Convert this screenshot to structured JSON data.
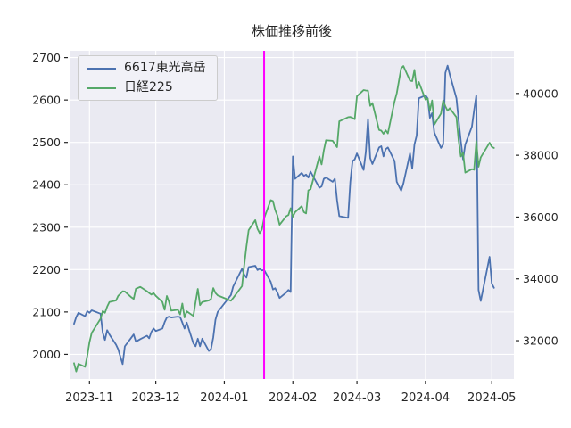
{
  "chart_data": {
    "type": "line",
    "title": "株価推移前後",
    "legend": {
      "position": "upper-left",
      "entries": [
        "6617東光高岳",
        "日経225"
      ]
    },
    "plot_bg_color": "#eaeaf2",
    "grid_color": "#ffffff",
    "text_color": "#262626",
    "event_line": {
      "date": "2024-01-19",
      "color": "#ff00ff",
      "width": 2
    },
    "x_axis": {
      "range": [
        "2023-10-23",
        "2024-05-11"
      ],
      "ticks": [
        {
          "label": "2023-11",
          "date": "2023-11-01"
        },
        {
          "label": "2023-12",
          "date": "2023-12-01"
        },
        {
          "label": "2024-01",
          "date": "2024-01-01"
        },
        {
          "label": "2024-02",
          "date": "2024-02-01"
        },
        {
          "label": "2024-03",
          "date": "2024-03-01"
        },
        {
          "label": "2024-04",
          "date": "2024-04-01"
        },
        {
          "label": "2024-05",
          "date": "2024-05-01"
        }
      ]
    },
    "y_left": {
      "range": [
        1942,
        2716
      ],
      "ticks": [
        2000,
        2100,
        2200,
        2300,
        2400,
        2500,
        2600,
        2700
      ]
    },
    "y_right": {
      "range": [
        30760,
        41380
      ],
      "ticks": [
        32000,
        34000,
        36000,
        38000,
        40000
      ]
    },
    "series": [
      {
        "name": "6617東光高岳",
        "axis": "left",
        "color": "#4c72b0",
        "points": [
          [
            "2023-10-25",
            2072
          ],
          [
            "2023-10-26",
            2088
          ],
          [
            "2023-10-27",
            2098
          ],
          [
            "2023-10-30",
            2090
          ],
          [
            "2023-10-31",
            2102
          ],
          [
            "2023-11-01",
            2098
          ],
          [
            "2023-11-02",
            2104
          ],
          [
            "2023-11-06",
            2096
          ],
          [
            "2023-11-07",
            2051
          ],
          [
            "2023-11-08",
            2034
          ],
          [
            "2023-11-09",
            2057
          ],
          [
            "2023-11-10",
            2047
          ],
          [
            "2023-11-13",
            2023
          ],
          [
            "2023-11-14",
            2012
          ],
          [
            "2023-11-15",
            1994
          ],
          [
            "2023-11-16",
            1977
          ],
          [
            "2023-11-17",
            2019
          ],
          [
            "2023-11-20",
            2040
          ],
          [
            "2023-11-21",
            2047
          ],
          [
            "2023-11-22",
            2030
          ],
          [
            "2023-11-24",
            2036
          ],
          [
            "2023-11-27",
            2044
          ],
          [
            "2023-11-28",
            2038
          ],
          [
            "2023-11-29",
            2053
          ],
          [
            "2023-11-30",
            2061
          ],
          [
            "2023-12-01",
            2055
          ],
          [
            "2023-12-04",
            2061
          ],
          [
            "2023-12-05",
            2076
          ],
          [
            "2023-12-06",
            2087
          ],
          [
            "2023-12-07",
            2089
          ],
          [
            "2023-12-08",
            2087
          ],
          [
            "2023-12-11",
            2089
          ],
          [
            "2023-12-12",
            2088
          ],
          [
            "2023-12-13",
            2075
          ],
          [
            "2023-12-14",
            2061
          ],
          [
            "2023-12-15",
            2075
          ],
          [
            "2023-12-18",
            2026
          ],
          [
            "2023-12-19",
            2019
          ],
          [
            "2023-12-20",
            2037
          ],
          [
            "2023-12-21",
            2019
          ],
          [
            "2023-12-22",
            2037
          ],
          [
            "2023-12-25",
            2008
          ],
          [
            "2023-12-26",
            2013
          ],
          [
            "2023-12-27",
            2040
          ],
          [
            "2023-12-28",
            2082
          ],
          [
            "2023-12-29",
            2100
          ],
          [
            "2024-01-04",
            2140
          ],
          [
            "2024-01-05",
            2160
          ],
          [
            "2024-01-09",
            2202
          ],
          [
            "2024-01-10",
            2188
          ],
          [
            "2024-01-11",
            2181
          ],
          [
            "2024-01-12",
            2206
          ],
          [
            "2024-01-15",
            2209
          ],
          [
            "2024-01-16",
            2199
          ],
          [
            "2024-01-17",
            2202
          ],
          [
            "2024-01-18",
            2198
          ],
          [
            "2024-01-19",
            2199
          ],
          [
            "2024-01-22",
            2171
          ],
          [
            "2024-01-23",
            2153
          ],
          [
            "2024-01-24",
            2156
          ],
          [
            "2024-01-25",
            2146
          ],
          [
            "2024-01-26",
            2133
          ],
          [
            "2024-01-29",
            2146
          ],
          [
            "2024-01-30",
            2152
          ],
          [
            "2024-01-31",
            2147
          ],
          [
            "2024-02-01",
            2467
          ],
          [
            "2024-02-02",
            2414
          ],
          [
            "2024-02-05",
            2428
          ],
          [
            "2024-02-06",
            2421
          ],
          [
            "2024-02-07",
            2424
          ],
          [
            "2024-02-08",
            2417
          ],
          [
            "2024-02-09",
            2431
          ],
          [
            "2024-02-13",
            2393
          ],
          [
            "2024-02-14",
            2396
          ],
          [
            "2024-02-15",
            2414
          ],
          [
            "2024-02-16",
            2417
          ],
          [
            "2024-02-19",
            2407
          ],
          [
            "2024-02-20",
            2414
          ],
          [
            "2024-02-21",
            2364
          ],
          [
            "2024-02-22",
            2326
          ],
          [
            "2024-02-26",
            2322
          ],
          [
            "2024-02-27",
            2407
          ],
          [
            "2024-02-28",
            2456
          ],
          [
            "2024-02-29",
            2460
          ],
          [
            "2024-03-01",
            2474
          ],
          [
            "2024-03-04",
            2435
          ],
          [
            "2024-03-05",
            2477
          ],
          [
            "2024-03-06",
            2555
          ],
          [
            "2024-03-07",
            2463
          ],
          [
            "2024-03-08",
            2449
          ],
          [
            "2024-03-11",
            2488
          ],
          [
            "2024-03-12",
            2491
          ],
          [
            "2024-03-13",
            2467
          ],
          [
            "2024-03-14",
            2484
          ],
          [
            "2024-03-15",
            2488
          ],
          [
            "2024-03-18",
            2456
          ],
          [
            "2024-03-19",
            2407
          ],
          [
            "2024-03-21",
            2386
          ],
          [
            "2024-03-22",
            2403
          ],
          [
            "2024-03-25",
            2474
          ],
          [
            "2024-03-26",
            2438
          ],
          [
            "2024-03-27",
            2495
          ],
          [
            "2024-03-28",
            2516
          ],
          [
            "2024-03-29",
            2604
          ],
          [
            "2024-04-01",
            2611
          ],
          [
            "2024-04-02",
            2604
          ],
          [
            "2024-04-03",
            2558
          ],
          [
            "2024-04-04",
            2569
          ],
          [
            "2024-04-05",
            2523
          ],
          [
            "2024-04-08",
            2487
          ],
          [
            "2024-04-09",
            2495
          ],
          [
            "2024-04-10",
            2664
          ],
          [
            "2024-04-11",
            2681
          ],
          [
            "2024-04-12",
            2660
          ],
          [
            "2024-04-15",
            2604
          ],
          [
            "2024-04-16",
            2552
          ],
          [
            "2024-04-17",
            2502
          ],
          [
            "2024-04-18",
            2460
          ],
          [
            "2024-04-19",
            2495
          ],
          [
            "2024-04-22",
            2537
          ],
          [
            "2024-04-23",
            2576
          ],
          [
            "2024-04-24",
            2611
          ],
          [
            "2024-04-25",
            2152
          ],
          [
            "2024-04-26",
            2126
          ],
          [
            "2024-04-30",
            2230
          ],
          [
            "2024-05-01",
            2167
          ],
          [
            "2024-05-02",
            2157
          ]
        ]
      },
      {
        "name": "日経225",
        "axis": "right",
        "color": "#55a868",
        "points": [
          [
            "2023-10-25",
            31270
          ],
          [
            "2023-10-26",
            31000
          ],
          [
            "2023-10-27",
            31250
          ],
          [
            "2023-10-30",
            31150
          ],
          [
            "2023-10-31",
            31500
          ],
          [
            "2023-11-01",
            31950
          ],
          [
            "2023-11-02",
            32250
          ],
          [
            "2023-11-06",
            32710
          ],
          [
            "2023-11-07",
            32960
          ],
          [
            "2023-11-08",
            32900
          ],
          [
            "2023-11-09",
            33100
          ],
          [
            "2023-11-10",
            33250
          ],
          [
            "2023-11-13",
            33300
          ],
          [
            "2023-11-14",
            33450
          ],
          [
            "2023-11-15",
            33520
          ],
          [
            "2023-11-16",
            33600
          ],
          [
            "2023-11-17",
            33590
          ],
          [
            "2023-11-20",
            33400
          ],
          [
            "2023-11-21",
            33350
          ],
          [
            "2023-11-22",
            33680
          ],
          [
            "2023-11-24",
            33740
          ],
          [
            "2023-11-27",
            33600
          ],
          [
            "2023-11-28",
            33540
          ],
          [
            "2023-11-29",
            33490
          ],
          [
            "2023-11-30",
            33540
          ],
          [
            "2023-12-01",
            33450
          ],
          [
            "2023-12-04",
            33250
          ],
          [
            "2023-12-05",
            33000
          ],
          [
            "2023-12-06",
            33445
          ],
          [
            "2023-12-07",
            33250
          ],
          [
            "2023-12-08",
            32970
          ],
          [
            "2023-12-11",
            33000
          ],
          [
            "2023-12-12",
            32850
          ],
          [
            "2023-12-13",
            33200
          ],
          [
            "2023-12-14",
            32750
          ],
          [
            "2023-12-15",
            32950
          ],
          [
            "2023-12-18",
            32800
          ],
          [
            "2023-12-19",
            33250
          ],
          [
            "2023-12-20",
            33675
          ],
          [
            "2023-12-21",
            33150
          ],
          [
            "2023-12-22",
            33250
          ],
          [
            "2023-12-25",
            33300
          ],
          [
            "2023-12-26",
            33350
          ],
          [
            "2023-12-27",
            33700
          ],
          [
            "2023-12-28",
            33540
          ],
          [
            "2023-12-29",
            33465
          ],
          [
            "2024-01-04",
            33290
          ],
          [
            "2024-01-05",
            33380
          ],
          [
            "2024-01-09",
            33765
          ],
          [
            "2024-01-10",
            34440
          ],
          [
            "2024-01-11",
            35050
          ],
          [
            "2024-01-12",
            35577
          ],
          [
            "2024-01-15",
            35900
          ],
          [
            "2024-01-16",
            35620
          ],
          [
            "2024-01-17",
            35480
          ],
          [
            "2024-01-18",
            35600
          ],
          [
            "2024-01-19",
            35963
          ],
          [
            "2024-01-22",
            36547
          ],
          [
            "2024-01-23",
            36517
          ],
          [
            "2024-01-24",
            36226
          ],
          [
            "2024-01-25",
            36050
          ],
          [
            "2024-01-26",
            35751
          ],
          [
            "2024-01-29",
            36026
          ],
          [
            "2024-01-30",
            36065
          ],
          [
            "2024-01-31",
            36286
          ],
          [
            "2024-02-01",
            36011
          ],
          [
            "2024-02-02",
            36158
          ],
          [
            "2024-02-05",
            36354
          ],
          [
            "2024-02-06",
            36160
          ],
          [
            "2024-02-07",
            36119
          ],
          [
            "2024-02-08",
            36863
          ],
          [
            "2024-02-09",
            36897
          ],
          [
            "2024-02-13",
            37963
          ],
          [
            "2024-02-14",
            37703
          ],
          [
            "2024-02-15",
            38157
          ],
          [
            "2024-02-16",
            38487
          ],
          [
            "2024-02-19",
            38470
          ],
          [
            "2024-02-20",
            38363
          ],
          [
            "2024-02-21",
            38262
          ],
          [
            "2024-02-22",
            39098
          ],
          [
            "2024-02-26",
            39233
          ],
          [
            "2024-02-27",
            39239
          ],
          [
            "2024-02-28",
            39208
          ],
          [
            "2024-02-29",
            39166
          ],
          [
            "2024-03-01",
            39910
          ],
          [
            "2024-03-04",
            40109
          ],
          [
            "2024-03-05",
            40097
          ],
          [
            "2024-03-06",
            40090
          ],
          [
            "2024-03-07",
            39598
          ],
          [
            "2024-03-08",
            39688
          ],
          [
            "2024-03-11",
            38820
          ],
          [
            "2024-03-12",
            38798
          ],
          [
            "2024-03-13",
            38696
          ],
          [
            "2024-03-14",
            38807
          ],
          [
            "2024-03-15",
            38708
          ],
          [
            "2024-03-18",
            39740
          ],
          [
            "2024-03-19",
            40004
          ],
          [
            "2024-03-21",
            40815
          ],
          [
            "2024-03-22",
            40888
          ],
          [
            "2024-03-25",
            40414
          ],
          [
            "2024-03-26",
            40398
          ],
          [
            "2024-03-27",
            40762
          ],
          [
            "2024-03-28",
            40168
          ],
          [
            "2024-03-29",
            40369
          ],
          [
            "2024-04-01",
            39803
          ],
          [
            "2024-04-02",
            39839
          ],
          [
            "2024-04-03",
            39451
          ],
          [
            "2024-04-04",
            39773
          ],
          [
            "2024-04-05",
            38992
          ],
          [
            "2024-04-08",
            39347
          ],
          [
            "2024-04-09",
            39773
          ],
          [
            "2024-04-10",
            39581
          ],
          [
            "2024-04-11",
            39442
          ],
          [
            "2024-04-12",
            39523
          ],
          [
            "2024-04-15",
            39232
          ],
          [
            "2024-04-16",
            38471
          ],
          [
            "2024-04-17",
            37961
          ],
          [
            "2024-04-18",
            38079
          ],
          [
            "2024-04-19",
            37438
          ],
          [
            "2024-04-22",
            37552
          ],
          [
            "2024-04-23",
            37529
          ],
          [
            "2024-04-24",
            38460
          ],
          [
            "2024-04-25",
            37628
          ],
          [
            "2024-04-26",
            37934
          ],
          [
            "2024-04-30",
            38405
          ],
          [
            "2024-05-01",
            38274
          ],
          [
            "2024-05-02",
            38236
          ]
        ]
      }
    ]
  }
}
